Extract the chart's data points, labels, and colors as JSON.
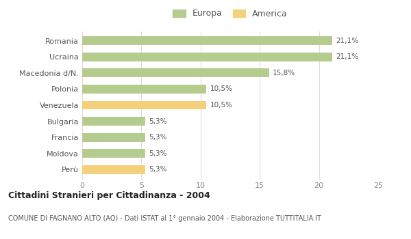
{
  "categories": [
    "Romania",
    "Ucraina",
    "Macedonia d/N.",
    "Polonia",
    "Venezuela",
    "Bulgaria",
    "Francia",
    "Moldova",
    "Perù"
  ],
  "values": [
    21.1,
    21.1,
    15.8,
    10.5,
    10.5,
    5.3,
    5.3,
    5.3,
    5.3
  ],
  "labels": [
    "21,1%",
    "21,1%",
    "15,8%",
    "10,5%",
    "10,5%",
    "5,3%",
    "5,3%",
    "5,3%",
    "5,3%"
  ],
  "colors": [
    "#b5cc8e",
    "#b5cc8e",
    "#b5cc8e",
    "#b5cc8e",
    "#f5d07a",
    "#b5cc8e",
    "#b5cc8e",
    "#b5cc8e",
    "#f5d07a"
  ],
  "europa_color": "#b5cc8e",
  "america_color": "#f5d07a",
  "title": "Cittadini Stranieri per Cittadinanza - 2004",
  "subtitle": "COMUNE DI FAGNANO ALTO (AQ) - Dati ISTAT al 1° gennaio 2004 - Elaborazione TUTTITALIA.IT",
  "xlim": [
    0,
    25
  ],
  "xticks": [
    0,
    5,
    10,
    15,
    20,
    25
  ],
  "legend_europa": "Europa",
  "legend_america": "America",
  "bar_height": 0.55,
  "background_color": "#ffffff",
  "grid_color": "#dddddd"
}
